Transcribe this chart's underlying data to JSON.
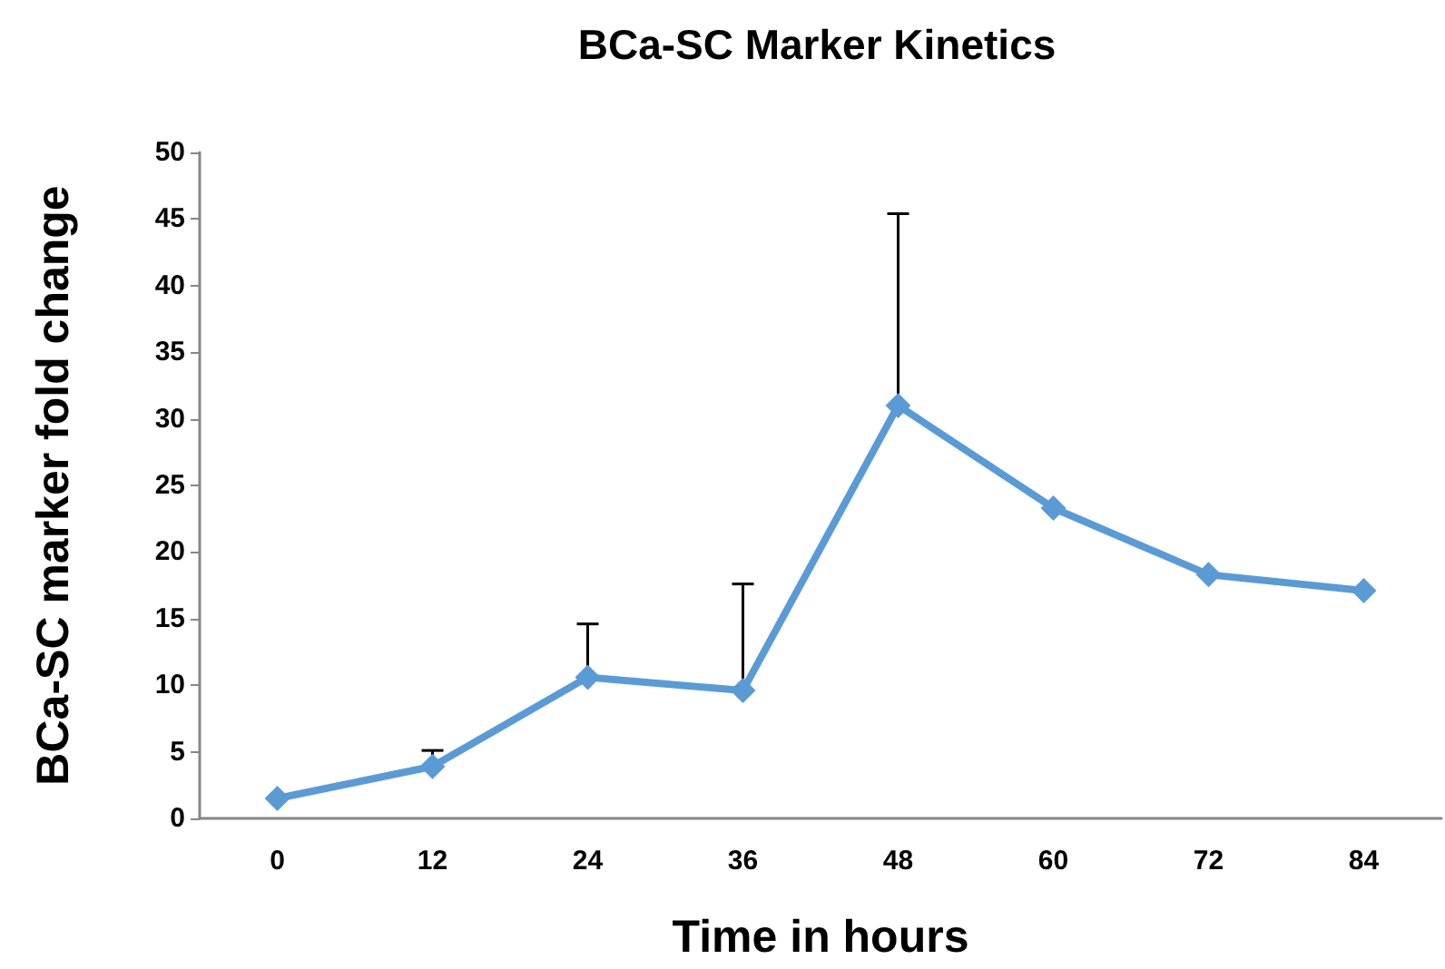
{
  "chart_data": {
    "type": "line",
    "title": "BCa-SC Marker Kinetics",
    "xlabel": "Time in hours",
    "ylabel": "BCa-SC marker fold change",
    "categories": [
      "0",
      "12",
      "24",
      "36",
      "48",
      "60",
      "72",
      "84"
    ],
    "series": [
      {
        "color": "#5b9bd5",
        "values": [
          1.5,
          3.9,
          10.6,
          9.6,
          31.0,
          23.3,
          18.3,
          17.1
        ],
        "errors": [
          null,
          [
            3.9,
            5.1
          ],
          [
            10.6,
            14.6
          ],
          [
            9.6,
            17.6
          ],
          [
            31.0,
            45.4
          ],
          null,
          null,
          null
        ]
      }
    ],
    "ylim": [
      0,
      50
    ],
    "yticks": [
      0,
      5,
      10,
      15,
      20,
      25,
      30,
      35,
      40,
      45,
      50
    ],
    "grid": false,
    "marker": "diamond",
    "line_style": "solid"
  }
}
